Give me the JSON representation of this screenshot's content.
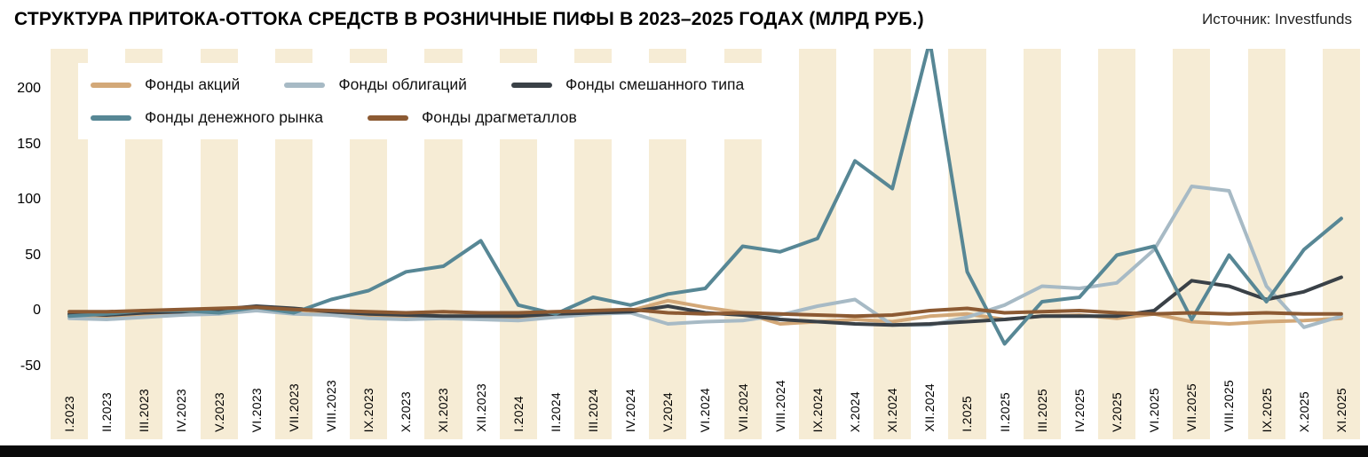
{
  "header": {
    "title": "СТРУКТУРА ПРИТОКА-ОТТОКА СРЕДСТВ В РОЗНИЧНЫЕ ПИФЫ В 2023–2025 ГОДАХ (МЛРД РУБ.)",
    "source": "Источник: Investfunds"
  },
  "chart_data": {
    "type": "line",
    "title": "Структура притока-оттока средств в розничные ПИФы в 2023–2025 годах (млрд руб.)",
    "xlabel": "",
    "ylabel": "млрд руб.",
    "ylim": [
      -62,
      236
    ],
    "yticks": [
      200,
      150,
      100,
      50,
      0,
      -50
    ],
    "grid": false,
    "legend_position": "top-left",
    "stripe_color": "#f6ecd5",
    "categories": [
      "I.2023",
      "II.2023",
      "III.2023",
      "IV.2023",
      "V.2023",
      "VI.2023",
      "VII.2023",
      "VIII.2023",
      "IX.2023",
      "X.2023",
      "XI.2023",
      "XII.2023",
      "I.2024",
      "II.2024",
      "III.2024",
      "IV.2024",
      "V.2024",
      "VI.2024",
      "VII.2024",
      "VIII.2024",
      "IX.2024",
      "X.2024",
      "XI.2024",
      "XII.2024",
      "I.2025",
      "II.2025",
      "III.2025",
      "IV.2025",
      "V.2025",
      "VI.2025",
      "VII.2025",
      "VIII.2025",
      "IX.2025",
      "X.2025",
      "XI.2025"
    ],
    "series": [
      {
        "name": "Фонды акций",
        "color": "#d3a878",
        "values": [
          -4,
          -5,
          -4,
          -2,
          -1,
          2,
          1,
          -2,
          -4,
          -5,
          -5,
          -5,
          -7,
          -3,
          -2,
          0,
          9,
          3,
          -2,
          -12,
          -10,
          -8,
          -10,
          -5,
          -3,
          -8,
          -5,
          -4,
          -7,
          -3,
          -10,
          -12,
          -10,
          -9,
          -7
        ]
      },
      {
        "name": "Фонды облигаций",
        "color": "#a7bac5",
        "values": [
          -7,
          -8,
          -6,
          -4,
          -3,
          0,
          -3,
          -4,
          -7,
          -8,
          -7,
          -8,
          -9,
          -6,
          -3,
          -2,
          -12,
          -10,
          -9,
          -4,
          4,
          10,
          -13,
          -13,
          -6,
          5,
          22,
          20,
          25,
          55,
          112,
          108,
          22,
          -15,
          -5
        ]
      },
      {
        "name": "Фонды смешанного типа",
        "color": "#3a4147",
        "values": [
          -3,
          -4,
          -2,
          -1,
          1,
          4,
          2,
          -1,
          -3,
          -4,
          -5,
          -5,
          -5,
          -3,
          -2,
          -1,
          4,
          -2,
          -4,
          -8,
          -10,
          -12,
          -13,
          -12,
          -10,
          -8,
          -5,
          -5,
          -5,
          0,
          27,
          22,
          10,
          17,
          30
        ]
      },
      {
        "name": "Фонды денежного рынка",
        "color": "#578795",
        "values": [
          -5,
          -3,
          0,
          0,
          -2,
          3,
          -2,
          10,
          18,
          35,
          40,
          63,
          5,
          -3,
          12,
          5,
          15,
          20,
          58,
          53,
          65,
          135,
          110,
          243,
          35,
          -30,
          8,
          12,
          50,
          58,
          -8,
          50,
          8,
          55,
          83
        ]
      },
      {
        "name": "Фонды драгметаллов",
        "color": "#8c5a33",
        "values": [
          -1,
          -1,
          0,
          1,
          2,
          3,
          1,
          0,
          -1,
          -2,
          -1,
          -2,
          -2,
          -1,
          0,
          1,
          -2,
          -3,
          -2,
          -3,
          -4,
          -5,
          -4,
          0,
          2,
          -2,
          -1,
          0,
          -2,
          -3,
          -2,
          -3,
          -2,
          -3,
          -3
        ]
      }
    ]
  }
}
